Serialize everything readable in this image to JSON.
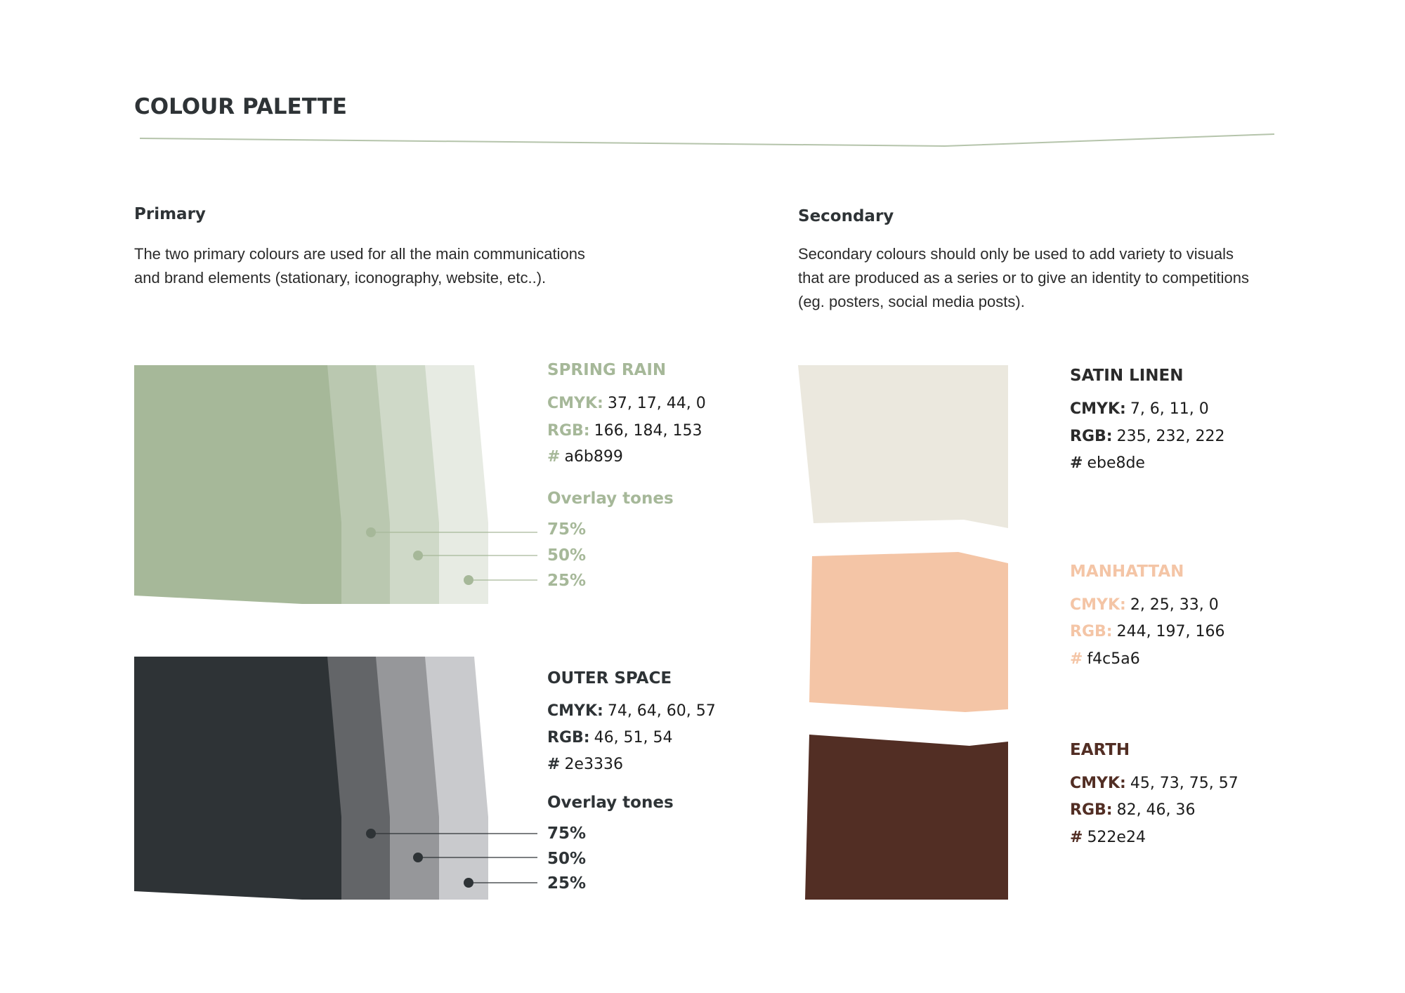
{
  "title": "COLOUR PALETTE",
  "primary": {
    "heading": "Primary",
    "description": [
      "The two primary colours are used for all the main communications",
      "and brand elements (stationary, iconography,  website, etc..)."
    ],
    "colours": [
      {
        "name": "SPRING RAIN",
        "color": "#a6b899",
        "cmyk": {
          "label": "CMYK:",
          "value": "37, 17, 44, 0"
        },
        "rgb": {
          "label": "RGB:",
          "value": "166, 184, 153"
        },
        "hex": {
          "label": "#",
          "value": "a6b899"
        },
        "overlay": {
          "label": "Overlay tones",
          "tones": [
            "75%",
            "50%",
            "25%"
          ]
        }
      },
      {
        "name": "OUTER SPACE",
        "color": "#2e3336",
        "cmyk": {
          "label": "CMYK:",
          "value": "74, 64, 60, 57"
        },
        "rgb": {
          "label": "RGB:",
          "value": "46, 51, 54"
        },
        "hex": {
          "label": "#",
          "value": "2e3336"
        },
        "overlay": {
          "label": "Overlay tones",
          "tones": [
            "75%",
            "50%",
            "25%"
          ]
        }
      }
    ]
  },
  "secondary": {
    "heading": "Secondary",
    "description": [
      "Secondary colours should only be used to add variety to visuals",
      "that are produced as a series or to give an identity to competitions",
      "(eg. posters, social media posts)."
    ],
    "colours": [
      {
        "name": "SATIN LINEN",
        "color": "#ebe8de",
        "cmyk": {
          "label": "CMYK:",
          "value": "7, 6, 11, 0"
        },
        "rgb": {
          "label": "RGB:",
          "value": "235, 232, 222"
        },
        "hex": {
          "label": "#",
          "value": "ebe8de"
        }
      },
      {
        "name": "MANHATTAN",
        "color": "#f4c5a6",
        "cmyk": {
          "label": "CMYK:",
          "value": "2, 25, 33, 0"
        },
        "rgb": {
          "label": "RGB:",
          "value": "244, 197, 166"
        },
        "hex": {
          "label": "#",
          "value": "f4c5a6"
        }
      },
      {
        "name": "EARTH",
        "color": "#522e24",
        "cmyk": {
          "label": "CMYK:",
          "value": "45, 73, 75, 57"
        },
        "rgb": {
          "label": "RGB:",
          "value": "82, 46, 36"
        },
        "hex": {
          "label": "#",
          "value": "522e24"
        }
      }
    ]
  }
}
